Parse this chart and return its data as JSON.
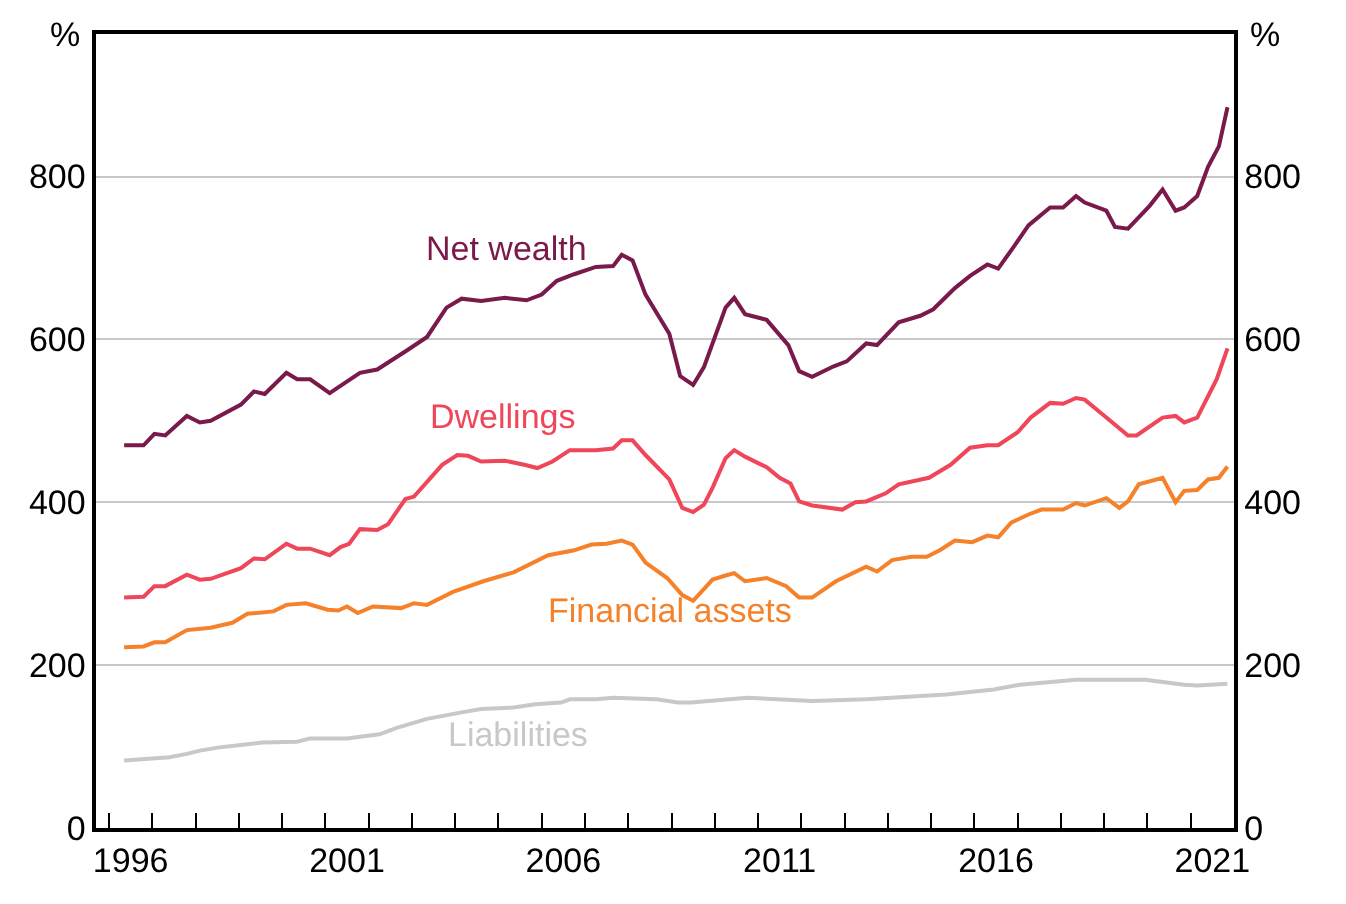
{
  "chart_data": {
    "type": "line",
    "ylabel": "%",
    "y2label": "%",
    "xlim": [
      1995.7,
      2022.0
    ],
    "ylim": [
      0,
      975
    ],
    "y2lim": [
      0,
      975
    ],
    "yticks": [
      0,
      200,
      400,
      600,
      800
    ],
    "y2ticks": [
      0,
      200,
      400,
      600,
      800
    ],
    "xticks": [
      {
        "value": 1996,
        "label": null
      },
      {
        "value": 1997,
        "label": null
      },
      {
        "value": 1998,
        "label": null
      },
      {
        "value": 1999,
        "label": null
      },
      {
        "value": 2000,
        "label": null
      },
      {
        "value": 2001,
        "label": null
      },
      {
        "value": 2002,
        "label": null
      },
      {
        "value": 2003,
        "label": null
      },
      {
        "value": 2004,
        "label": null
      },
      {
        "value": 2005,
        "label": null
      },
      {
        "value": 2006,
        "label": null
      },
      {
        "value": 2007,
        "label": null
      },
      {
        "value": 2008,
        "label": null
      },
      {
        "value": 2009,
        "label": null
      },
      {
        "value": 2010,
        "label": null
      },
      {
        "value": 2011,
        "label": null
      },
      {
        "value": 2012,
        "label": null
      },
      {
        "value": 2013,
        "label": null
      },
      {
        "value": 2014,
        "label": null
      },
      {
        "value": 2015,
        "label": null
      },
      {
        "value": 2016,
        "label": null
      },
      {
        "value": 2017,
        "label": null
      },
      {
        "value": 2018,
        "label": null
      },
      {
        "value": 2019,
        "label": null
      },
      {
        "value": 2020,
        "label": null
      },
      {
        "value": 2021,
        "label": null
      },
      {
        "value": 1996.5,
        "label": "1996"
      },
      {
        "value": 2001.5,
        "label": "2001"
      },
      {
        "value": 2006.5,
        "label": "2006"
      },
      {
        "value": 2011.5,
        "label": "2011"
      },
      {
        "value": 2016.5,
        "label": "2016"
      },
      {
        "value": 2021.5,
        "label": "2021"
      }
    ],
    "grid": "y",
    "legend": false,
    "marker": "none",
    "line_style": "solid",
    "series": [
      {
        "name": "Net wealth",
        "color": "#7a1a4a",
        "x": [
          1996.35,
          1996.8,
          1997.05,
          1997.3,
          1997.8,
          1998.1,
          1998.35,
          1999.05,
          1999.35,
          1999.6,
          2000.1,
          2000.35,
          2000.65,
          2001.1,
          2001.35,
          2001.8,
          2002.2,
          2002.9,
          2003.35,
          2003.8,
          2004.15,
          2004.6,
          2005.15,
          2005.65,
          2006.0,
          2006.35,
          2006.75,
          2007.25,
          2007.65,
          2007.85,
          2008.1,
          2008.4,
          2008.95,
          2009.2,
          2009.5,
          2009.75,
          2010.25,
          2010.45,
          2010.7,
          2011.2,
          2011.7,
          2011.95,
          2012.25,
          2012.75,
          2013.05,
          2013.5,
          2013.75,
          2014.25,
          2014.75,
          2015.05,
          2015.55,
          2015.9,
          2016.3,
          2016.55,
          2016.9,
          2017.25,
          2017.75,
          2018.05,
          2018.35,
          2018.55,
          2019.05,
          2019.25,
          2019.55,
          2020.05,
          2020.35,
          2020.65,
          2020.85,
          2021.15,
          2021.4,
          2021.65,
          2021.85
        ],
        "values": [
          470,
          470,
          484,
          482,
          506,
          498,
          500,
          520,
          536,
          533,
          559,
          551,
          551,
          534,
          543,
          559,
          563,
          587,
          603,
          639,
          650,
          647,
          651,
          648,
          655,
          672,
          680,
          689,
          690,
          704,
          697,
          655,
          607,
          555,
          544,
          566,
          639,
          651,
          631,
          624,
          593,
          561,
          554,
          567,
          573,
          595,
          593,
          621,
          629,
          637,
          663,
          678,
          692,
          687,
          713,
          740,
          762,
          762,
          776,
          768,
          758,
          738,
          736,
          764,
          784,
          758,
          762,
          776,
          812,
          837,
          885
        ]
      },
      {
        "name": "Dwellings",
        "color": "#f0465a",
        "x": [
          1996.35,
          1996.8,
          1997.05,
          1997.3,
          1997.8,
          1998.1,
          1998.35,
          1999.05,
          1999.35,
          1999.6,
          2000.1,
          2000.35,
          2000.65,
          2001.1,
          2001.35,
          2001.55,
          2001.8,
          2002.2,
          2002.45,
          2002.85,
          2003.05,
          2003.7,
          2004.05,
          2004.3,
          2004.6,
          2005.15,
          2005.6,
          2005.9,
          2006.25,
          2006.65,
          2007.25,
          2007.65,
          2007.85,
          2008.1,
          2008.4,
          2008.95,
          2009.25,
          2009.5,
          2009.75,
          2009.95,
          2010.25,
          2010.45,
          2010.7,
          2011.2,
          2011.5,
          2011.75,
          2011.95,
          2012.25,
          2012.95,
          2013.25,
          2013.5,
          2013.95,
          2014.25,
          2014.95,
          2015.45,
          2015.9,
          2016.3,
          2016.55,
          2017.0,
          2017.3,
          2017.75,
          2018.05,
          2018.35,
          2018.55,
          2019.05,
          2019.55,
          2019.75,
          2020.35,
          2020.65,
          2020.85,
          2021.15,
          2021.6,
          2021.85
        ],
        "values": [
          283,
          284,
          297,
          297,
          311,
          305,
          306,
          319,
          331,
          330,
          349,
          343,
          343,
          335,
          345,
          349,
          367,
          366,
          373,
          404,
          407,
          446,
          458,
          457,
          450,
          451,
          446,
          442,
          450,
          464,
          464,
          466,
          476,
          476,
          458,
          428,
          393,
          388,
          397,
          418,
          454,
          464,
          456,
          443,
          430,
          423,
          401,
          396,
          391,
          400,
          401,
          411,
          422,
          430,
          446,
          467,
          470,
          470,
          486,
          504,
          522,
          521,
          528,
          526,
          504,
          482,
          482,
          504,
          506,
          498,
          504,
          551,
          589
        ]
      },
      {
        "name": "Financial assets",
        "color": "#f5822a",
        "x": [
          1996.35,
          1996.8,
          1997.05,
          1997.3,
          1997.8,
          1998.35,
          1998.85,
          1999.2,
          1999.8,
          2000.1,
          2000.55,
          2001.05,
          2001.3,
          2001.5,
          2001.75,
          2002.1,
          2002.75,
          2003.05,
          2003.35,
          2003.95,
          2004.65,
          2005.35,
          2006.15,
          2006.75,
          2007.15,
          2007.5,
          2007.85,
          2008.1,
          2008.4,
          2008.9,
          2009.25,
          2009.5,
          2009.95,
          2010.25,
          2010.45,
          2010.7,
          2011.2,
          2011.65,
          2011.95,
          2012.25,
          2012.8,
          2013.5,
          2013.75,
          2014.1,
          2014.55,
          2014.9,
          2015.2,
          2015.55,
          2015.95,
          2016.3,
          2016.55,
          2016.85,
          2017.25,
          2017.55,
          2018.05,
          2018.35,
          2018.55,
          2019.05,
          2019.35,
          2019.55,
          2019.8,
          2020.35,
          2020.65,
          2020.85,
          2021.15,
          2021.4,
          2021.65,
          2021.85
        ],
        "values": [
          222,
          223,
          228,
          228,
          243,
          246,
          252,
          263,
          266,
          274,
          276,
          268,
          267,
          272,
          264,
          272,
          270,
          276,
          274,
          290,
          303,
          314,
          335,
          341,
          348,
          349,
          353,
          348,
          326,
          307,
          286,
          279,
          305,
          310,
          313,
          303,
          307,
          297,
          283,
          283,
          303,
          321,
          315,
          329,
          333,
          333,
          341,
          353,
          351,
          359,
          357,
          375,
          385,
          391,
          391,
          399,
          396,
          405,
          393,
          401,
          422,
          430,
          400,
          414,
          415,
          428,
          430,
          444
        ]
      },
      {
        "name": "Liabilities",
        "color": "#c8c8c8",
        "x": [
          1996.35,
          1997.4,
          1997.8,
          1998.1,
          1998.55,
          1999.05,
          1999.55,
          2000.35,
          2000.65,
          2001.5,
          2002.25,
          2002.65,
          2003.35,
          2004.15,
          2004.6,
          2005.35,
          2005.85,
          2006.45,
          2006.65,
          2007.25,
          2007.65,
          2008.15,
          2008.65,
          2009.15,
          2009.45,
          2010.75,
          2012.25,
          2013.5,
          2015.35,
          2016.45,
          2017.05,
          2018.35,
          2019.95,
          2020.85,
          2021.15,
          2021.85
        ],
        "values": [
          83,
          87,
          91,
          95,
          99,
          102,
          105,
          106,
          110,
          110,
          115,
          123,
          134,
          142,
          146,
          148,
          152,
          154,
          158,
          158,
          160,
          159,
          158,
          154,
          154,
          160,
          156,
          158,
          164,
          170,
          176,
          182,
          182,
          176,
          175,
          177
        ]
      }
    ]
  }
}
